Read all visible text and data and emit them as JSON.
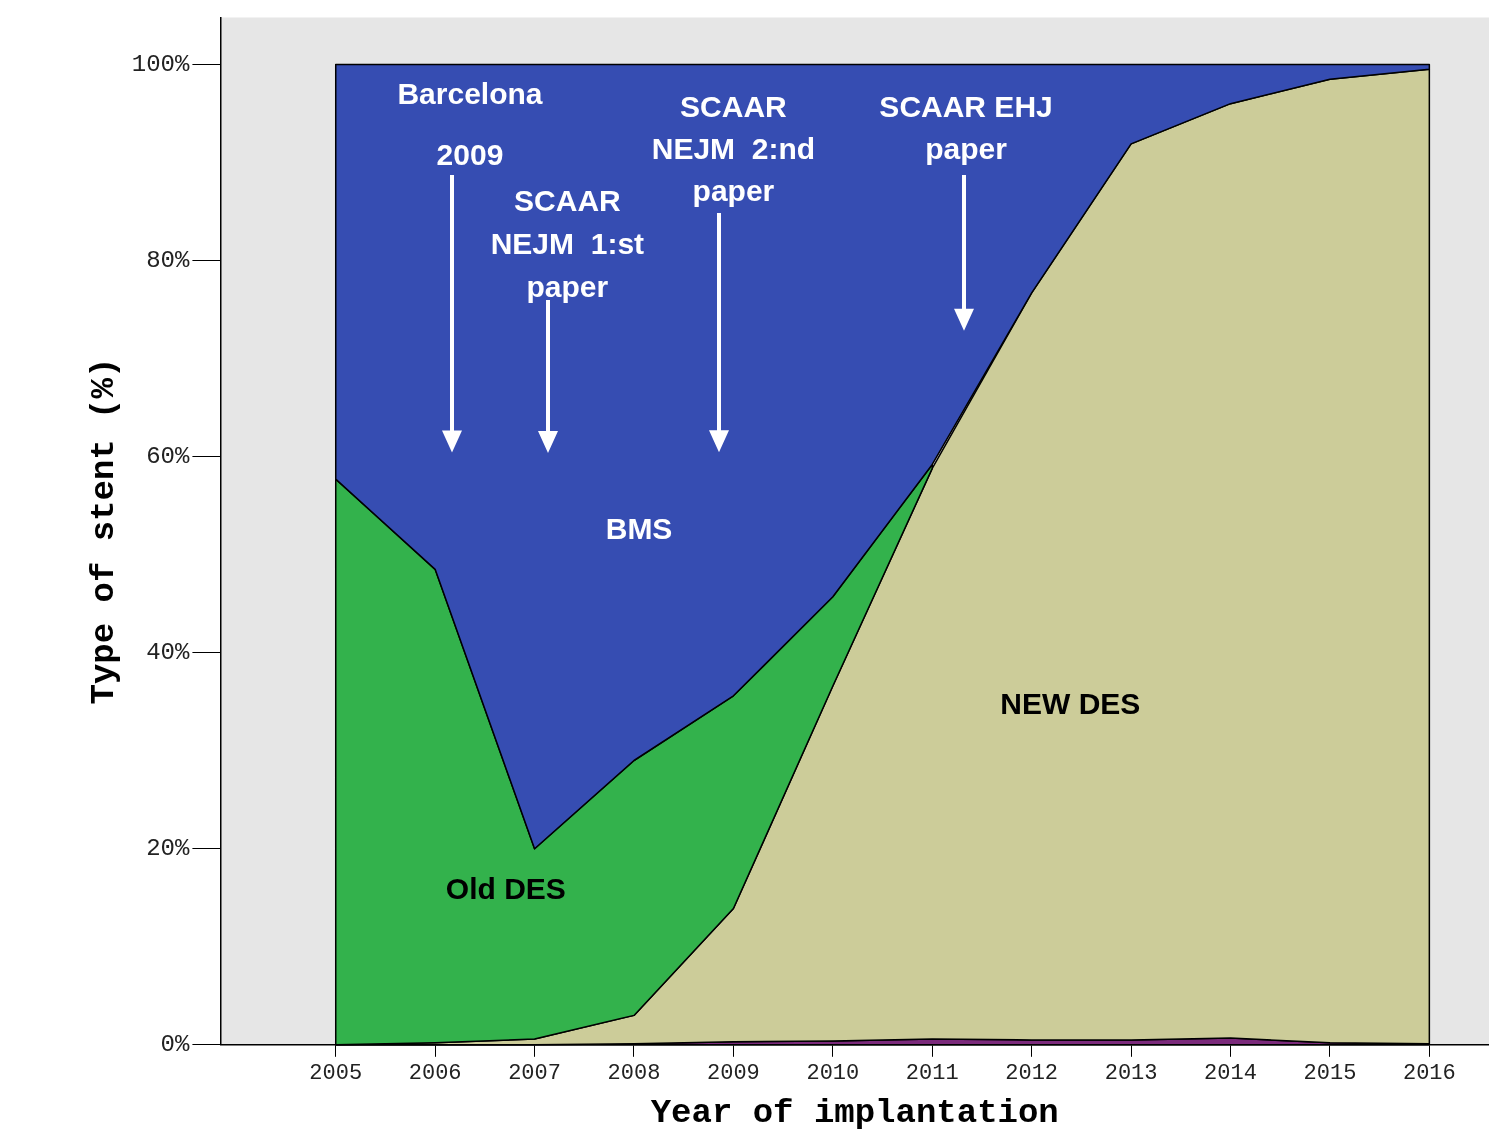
{
  "chart_data": {
    "type": "area",
    "stacked": true,
    "xlabel": "Year of implantation",
    "ylabel": "Type of stent (%)",
    "x": [
      2005,
      2006,
      2007,
      2008,
      2009,
      2010,
      2011,
      2012,
      2013,
      2014,
      2015,
      2016
    ],
    "xlim": [
      2003.84,
      2016.6
    ],
    "xticks": [
      2005,
      2006,
      2007,
      2008,
      2009,
      2010,
      2011,
      2012,
      2013,
      2014,
      2015,
      2016
    ],
    "ylim": [
      0,
      104.8
    ],
    "yticks": [
      {
        "value": 0,
        "label": "0%"
      },
      {
        "value": 20,
        "label": "20%"
      },
      {
        "value": 40,
        "label": "40%"
      },
      {
        "value": 60,
        "label": "60%"
      },
      {
        "value": 80,
        "label": "80%"
      },
      {
        "value": 100,
        "label": "100%"
      }
    ],
    "grid": false,
    "legend": false,
    "series": [
      {
        "color": "#7b2a7b",
        "values": [
          0,
          0,
          0,
          0.1,
          0.3,
          0.4,
          0.6,
          0.5,
          0.5,
          0.7,
          0.2,
          0.1
        ]
      },
      {
        "name": "NEW DES",
        "color": "#cccc99",
        "values": [
          0,
          0.2,
          0.6,
          2.9,
          13.6,
          36.2,
          58.2,
          76.2,
          91.4,
          95.3,
          98.3,
          99.4
        ]
      },
      {
        "name": "Old DES",
        "color": "#33b24c",
        "values": [
          57.7,
          48.3,
          19.4,
          26.0,
          21.7,
          9.1,
          0.4,
          null,
          null,
          null,
          null,
          null
        ]
      },
      {
        "name": "BMS",
        "color": "#364db2",
        "values": [
          42.3,
          51.5,
          80.0,
          71.0,
          64.4,
          54.3,
          40.8,
          23.3,
          8.1,
          4.0,
          1.5,
          0.5
        ]
      }
    ],
    "annotations": [
      "Barcelona\n2009",
      "SCAAR\nNEJM  1:st\npaper",
      "SCAAR\nNEJM  2:nd\npaper",
      "SCAAR EHJ\npaper"
    ]
  }
}
